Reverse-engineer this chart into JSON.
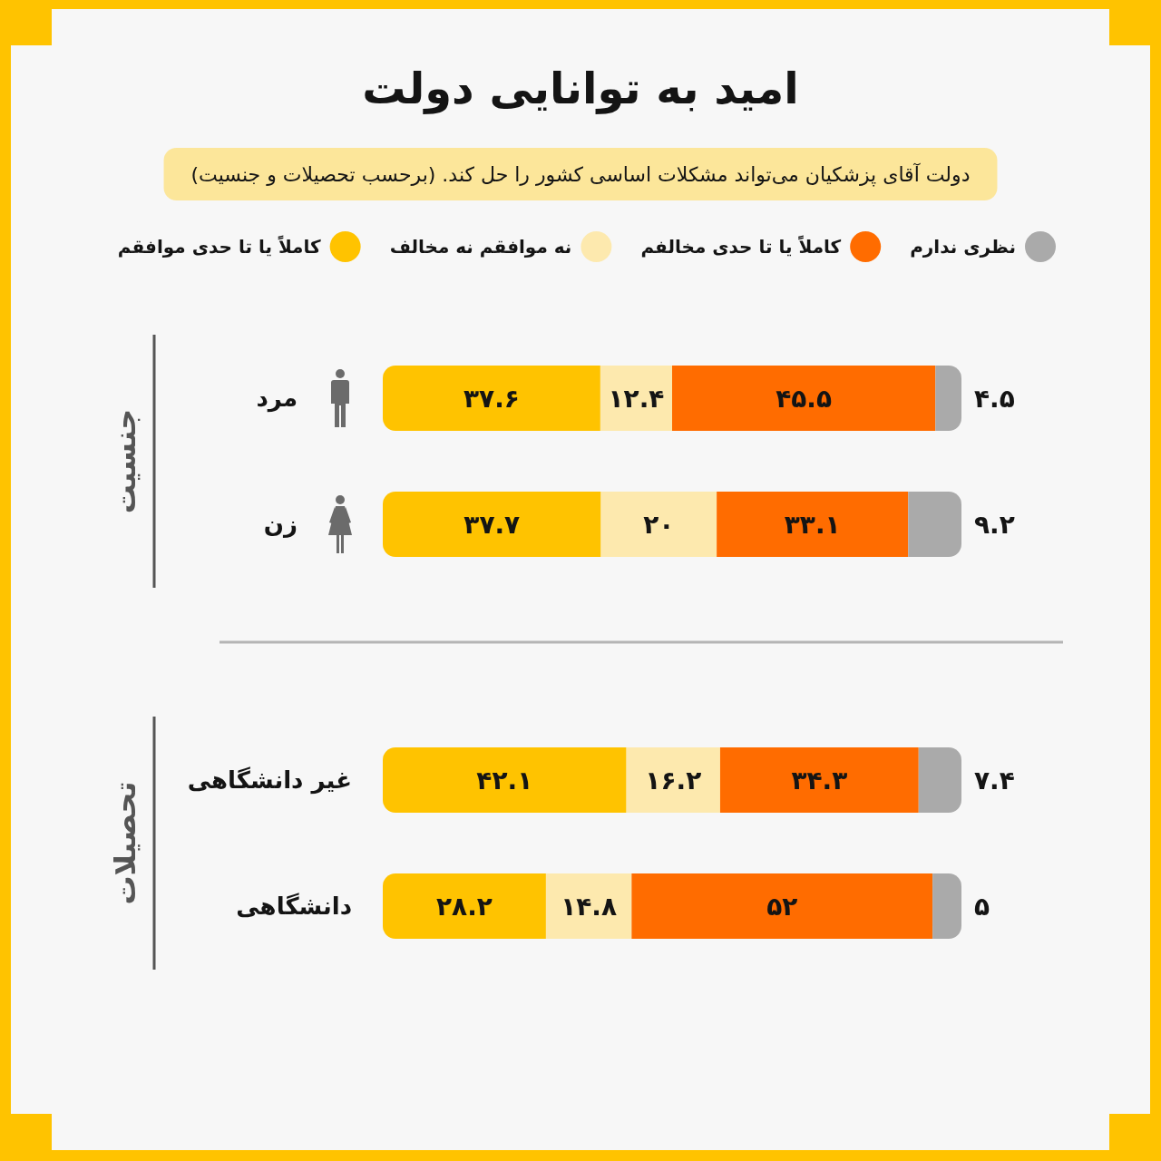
{
  "chart_data": [
    {
      "type": "bar",
      "orientation": "horizontal",
      "stacked": true,
      "title": "امید به توانایی دولت",
      "subtitle": "دولت آقای پزشکیان می‌تواند مشکلات اساسی کشور را حل کند. (برحسب تحصیلات و جنسیت)",
      "ylabel": "جنسیت",
      "categories": [
        "مرد",
        "زن"
      ],
      "series": [
        {
          "name": "کاملاً یا تا حدی موافقم",
          "color": "#ffc300",
          "values": [
            37.6,
            37.7
          ],
          "value_labels": [
            "۳۷.۶",
            "۳۷.۷"
          ]
        },
        {
          "name": "نه موافقم نه مخالف",
          "color": "#fde9ae",
          "values": [
            12.4,
            20
          ],
          "value_labels": [
            "۱۲.۴",
            "۲۰"
          ]
        },
        {
          "name": "کاملاً یا تا حدی مخالفم",
          "color": "#ff6c00",
          "values": [
            45.5,
            33.1
          ],
          "value_labels": [
            "۴۵.۵",
            "۳۳.۱"
          ]
        },
        {
          "name": "نظری ندارم",
          "color": "#aaaaaa",
          "values": [
            4.5,
            9.2
          ],
          "value_labels": [
            "۴.۵",
            "۹.۲"
          ]
        }
      ],
      "xlim": [
        0,
        100
      ],
      "tick_labels": "y",
      "legend": "top"
    },
    {
      "type": "bar",
      "orientation": "horizontal",
      "stacked": true,
      "ylabel": "تحصیلات",
      "categories": [
        "غیر دانشگاهی",
        "دانشگاهی"
      ],
      "series": [
        {
          "color": "#ffc300",
          "values": [
            42.1,
            28.2
          ],
          "value_labels": [
            "۴۲.۱",
            "۲۸.۲"
          ]
        },
        {
          "color": "#fde9ae",
          "values": [
            16.2,
            14.8
          ],
          "value_labels": [
            "۱۶.۲",
            "۱۴.۸"
          ]
        },
        {
          "color": "#ff6c00",
          "values": [
            34.3,
            52
          ],
          "value_labels": [
            "۳۴.۳",
            "۵۲"
          ]
        },
        {
          "color": "#aaaaaa",
          "values": [
            7.4,
            5
          ],
          "value_labels": [
            "۷.۴",
            "۵"
          ]
        }
      ],
      "xlim": [
        0,
        100
      ],
      "tick_labels": "y"
    }
  ]
}
